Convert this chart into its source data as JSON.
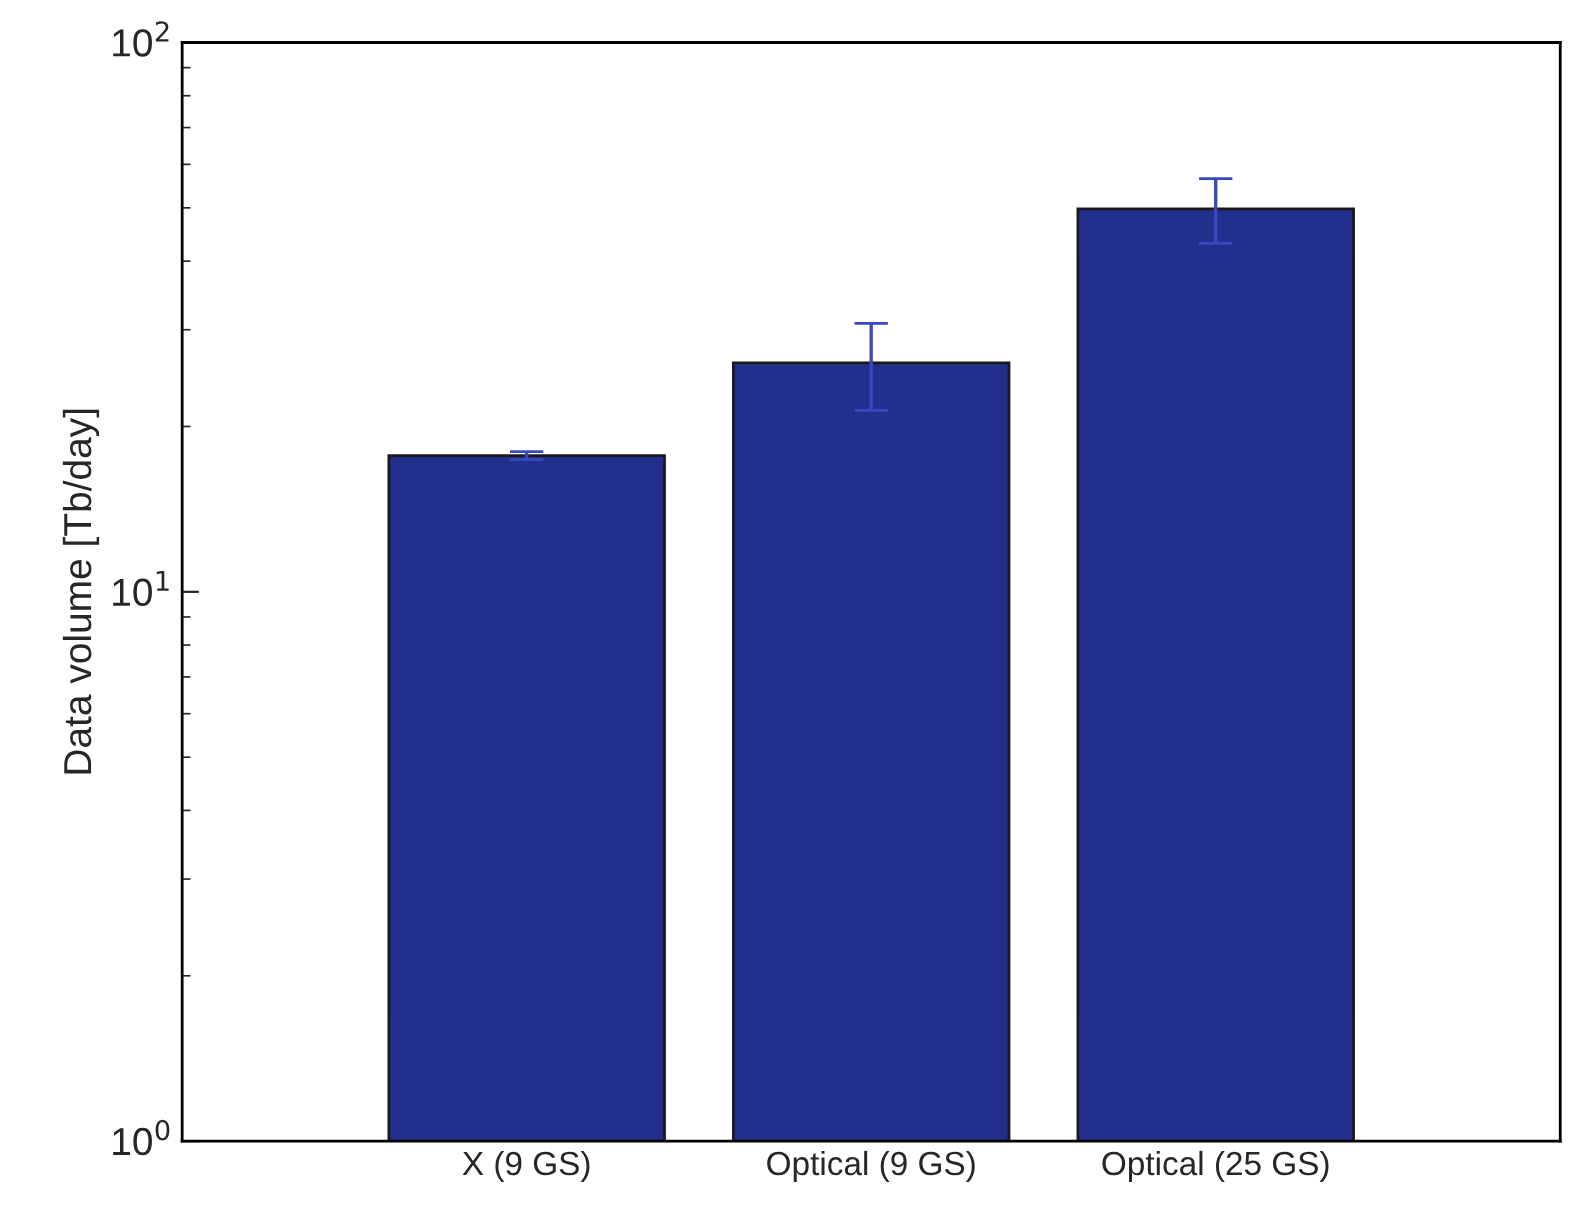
{
  "chart_data": {
    "type": "bar",
    "ylabel": "Data volume [Tb/day]",
    "categories": [
      "X (9 GS)",
      "Optical (9 GS)",
      "Optical (25 GS)"
    ],
    "values": [
      17.7,
      26.1,
      49.8
    ],
    "errors": [
      0.3,
      4.7,
      6.7
    ],
    "color": "#232f8c",
    "log": true,
    "ylim": [
      1,
      100
    ],
    "yticks": [
      {
        "value": 1,
        "label": "10$^{0}$"
      },
      {
        "value": 10,
        "label": "10$^{1}$"
      },
      {
        "value": 100,
        "label": "10$^{2}$"
      }
    ],
    "grid": false,
    "legend": false
  }
}
